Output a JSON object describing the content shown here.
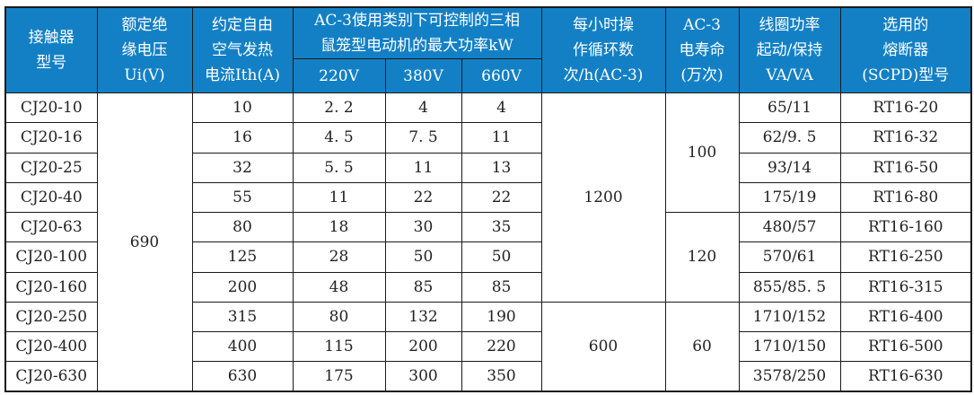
{
  "table": {
    "title_semantic": "CJ20 contactor technical parameters table",
    "colors": {
      "header_bg": "#1380c5",
      "header_text": "#ffffff",
      "border": "#1a1a1a",
      "body_text": "#222222"
    },
    "header": {
      "model": "接触器\n型号",
      "insulation_voltage": "额定绝\n缘电压\nUi(V)",
      "thermal_current": "约定自由\n空气发热\n电流Ith(A)",
      "max_power_group": "AC-3使用类别下可控制的三相\n鼠笼型电动机的最大功率kW",
      "v220": "220V",
      "v380": "380V",
      "v660": "660V",
      "cycles": "每小时操\n作循环数\n次/h(AC-3)",
      "electrical_life": "AC-3\n电寿命\n(万次)",
      "coil_power": "线圈功率\n起动/保持\nVA/VA",
      "fuse": "选用的\n熔断器\n(SCPD)型号"
    },
    "merged": {
      "ui_voltage": {
        "value": "690",
        "start": 0,
        "span": 10
      },
      "cycles": [
        {
          "value": "1200",
          "start": 0,
          "span": 7
        },
        {
          "value": "600",
          "start": 7,
          "span": 3
        }
      ],
      "life": [
        {
          "value": "100",
          "start": 0,
          "span": 4
        },
        {
          "value": "120",
          "start": 4,
          "span": 3
        },
        {
          "value": "60",
          "start": 7,
          "span": 3
        }
      ]
    },
    "rows": [
      {
        "model": "CJ20-10",
        "ith": "10",
        "p220": "2. 2",
        "p380": "4",
        "p660": "4",
        "coil": "65/11",
        "fuse": "RT16-20"
      },
      {
        "model": "CJ20-16",
        "ith": "16",
        "p220": "4. 5",
        "p380": "7. 5",
        "p660": "11",
        "coil": "62/9. 5",
        "fuse": "RT16-32"
      },
      {
        "model": "CJ20-25",
        "ith": "32",
        "p220": "5. 5",
        "p380": "11",
        "p660": "13",
        "coil": "93/14",
        "fuse": "RT16-50"
      },
      {
        "model": "CJ20-40",
        "ith": "55",
        "p220": "11",
        "p380": "22",
        "p660": "22",
        "coil": "175/19",
        "fuse": "RT16-80"
      },
      {
        "model": "CJ20-63",
        "ith": "80",
        "p220": "18",
        "p380": "30",
        "p660": "35",
        "coil": "480/57",
        "fuse": "RT16-160"
      },
      {
        "model": "CJ20-100",
        "ith": "125",
        "p220": "28",
        "p380": "50",
        "p660": "50",
        "coil": "570/61",
        "fuse": "RT16-250"
      },
      {
        "model": "CJ20-160",
        "ith": "200",
        "p220": "48",
        "p380": "85",
        "p660": "85",
        "coil": "855/85. 5",
        "fuse": "RT16-315"
      },
      {
        "model": "CJ20-250",
        "ith": "315",
        "p220": "80",
        "p380": "132",
        "p660": "190",
        "coil": "1710/152",
        "fuse": "RT16-400"
      },
      {
        "model": "CJ20-400",
        "ith": "400",
        "p220": "115",
        "p380": "200",
        "p660": "220",
        "coil": "1710/150",
        "fuse": "RT16-500"
      },
      {
        "model": "CJ20-630",
        "ith": "630",
        "p220": "175",
        "p380": "300",
        "p660": "350",
        "coil": "3578/250",
        "fuse": "RT16-630"
      }
    ]
  }
}
